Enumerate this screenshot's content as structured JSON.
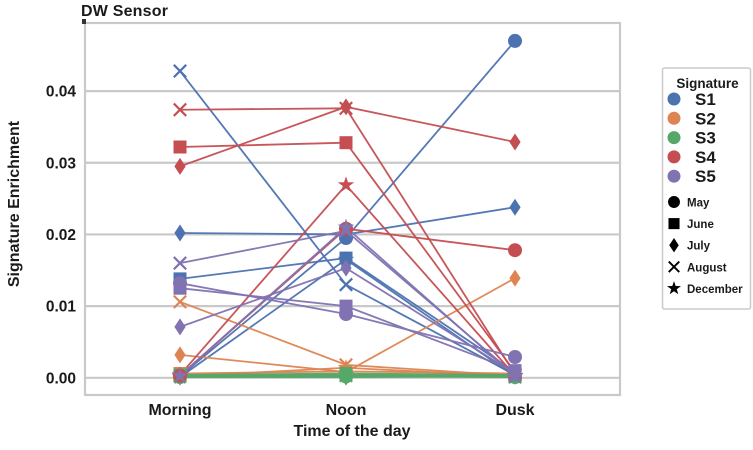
{
  "chart_data": {
    "type": "line",
    "title": "DW Sensor",
    "xlabel": "Time of the day",
    "ylabel": "Signature Enrichment",
    "categories": [
      "Morning",
      "Noon",
      "Dusk"
    ],
    "ylim": [
      -0.0024,
      0.0495
    ],
    "yticks": [
      {
        "value": 0.0,
        "label": "0.00"
      },
      {
        "value": 0.01,
        "label": "0.01"
      },
      {
        "value": 0.02,
        "label": "0.02"
      },
      {
        "value": 0.03,
        "label": "0.03"
      },
      {
        "value": 0.04,
        "label": "0.04"
      }
    ],
    "grid": "horizontal-only",
    "grid_color": "#c9c9c9",
    "legend": {
      "title": "Signature",
      "position": "right-outside",
      "signatures": [
        {
          "label": "S1",
          "color": "#4C72B0"
        },
        {
          "label": "S2",
          "color": "#DD8452"
        },
        {
          "label": "S3",
          "color": "#55A868"
        },
        {
          "label": "S4",
          "color": "#C44E52"
        },
        {
          "label": "S5",
          "color": "#8172B2"
        }
      ],
      "months": [
        {
          "label": "May",
          "marker": "circle"
        },
        {
          "label": "June",
          "marker": "square"
        },
        {
          "label": "July",
          "marker": "diamond"
        },
        {
          "label": "August",
          "marker": "x"
        },
        {
          "label": "December",
          "marker": "star"
        }
      ]
    },
    "series": [
      {
        "signature": "S1",
        "month": "May",
        "marker": "circle",
        "color": "#4C72B0",
        "values": [
          0.0002,
          0.0195,
          0.047
        ]
      },
      {
        "signature": "S1",
        "month": "June",
        "marker": "square",
        "color": "#4C72B0",
        "values": [
          0.0138,
          0.0167,
          0.0008
        ]
      },
      {
        "signature": "S1",
        "month": "July",
        "marker": "diamond",
        "color": "#4C72B0",
        "values": [
          0.0202,
          0.02,
          0.0238
        ]
      },
      {
        "signature": "S1",
        "month": "August",
        "marker": "x",
        "color": "#4C72B0",
        "values": [
          0.0428,
          0.013,
          0.0004
        ]
      },
      {
        "signature": "S1",
        "month": "December",
        "marker": "star",
        "color": "#4C72B0",
        "values": [
          0.0001,
          0.0165,
          0.0002
        ]
      },
      {
        "signature": "S2",
        "month": "May",
        "marker": "circle",
        "color": "#DD8452",
        "values": [
          0.0001,
          0.0004,
          0.0001
        ]
      },
      {
        "signature": "S2",
        "month": "June",
        "marker": "square",
        "color": "#DD8452",
        "values": [
          0.0006,
          0.0009,
          0.0006
        ]
      },
      {
        "signature": "S2",
        "month": "July",
        "marker": "diamond",
        "color": "#DD8452",
        "values": [
          0.0032,
          0.0008,
          0.0139
        ]
      },
      {
        "signature": "S2",
        "month": "August",
        "marker": "x",
        "color": "#DD8452",
        "values": [
          0.0106,
          0.0018,
          0.0003
        ]
      },
      {
        "signature": "S2",
        "month": "December",
        "marker": "star",
        "color": "#DD8452",
        "values": [
          0.0002,
          0.0014,
          0.0002
        ]
      },
      {
        "signature": "S3",
        "month": "May",
        "marker": "circle",
        "color": "#55A868",
        "values": [
          0.0001,
          0.0002,
          0.0001
        ]
      },
      {
        "signature": "S3",
        "month": "June",
        "marker": "square",
        "color": "#55A868",
        "values": [
          0.0004,
          0.0006,
          0.0004
        ]
      },
      {
        "signature": "S3",
        "month": "July",
        "marker": "diamond",
        "color": "#55A868",
        "values": [
          0.0001,
          0.0001,
          0.0002
        ]
      },
      {
        "signature": "S3",
        "month": "August",
        "marker": "x",
        "color": "#55A868",
        "values": [
          0.0002,
          0.0003,
          0.0001
        ]
      },
      {
        "signature": "S3",
        "month": "December",
        "marker": "star",
        "color": "#55A868",
        "values": [
          0.0003,
          0.0004,
          0.0003
        ]
      },
      {
        "signature": "S4",
        "month": "May",
        "marker": "circle",
        "color": "#C44E52",
        "values": [
          0.0003,
          0.0208,
          0.0178
        ]
      },
      {
        "signature": "S4",
        "month": "June",
        "marker": "square",
        "color": "#C44E52",
        "values": [
          0.0322,
          0.0328,
          0.0008
        ]
      },
      {
        "signature": "S4",
        "month": "July",
        "marker": "diamond",
        "color": "#C44E52",
        "values": [
          0.0295,
          0.0378,
          0.0329
        ]
      },
      {
        "signature": "S4",
        "month": "August",
        "marker": "x",
        "color": "#C44E52",
        "values": [
          0.0374,
          0.0376,
          0.0005
        ]
      },
      {
        "signature": "S4",
        "month": "December",
        "marker": "star",
        "color": "#C44E52",
        "values": [
          0.0004,
          0.0269,
          0.0003
        ]
      },
      {
        "signature": "S5",
        "month": "May",
        "marker": "circle",
        "color": "#8172B2",
        "values": [
          0.0132,
          0.0089,
          0.0029
        ]
      },
      {
        "signature": "S5",
        "month": "June",
        "marker": "square",
        "color": "#8172B2",
        "values": [
          0.0125,
          0.01,
          0.001
        ]
      },
      {
        "signature": "S5",
        "month": "July",
        "marker": "diamond",
        "color": "#8172B2",
        "values": [
          0.0071,
          0.0153,
          0.0006
        ]
      },
      {
        "signature": "S5",
        "month": "August",
        "marker": "x",
        "color": "#8172B2",
        "values": [
          0.016,
          0.0205,
          0.0004
        ]
      },
      {
        "signature": "S5",
        "month": "December",
        "marker": "star",
        "color": "#8172B2",
        "values": [
          0.0003,
          0.021,
          0.0002
        ]
      }
    ]
  }
}
